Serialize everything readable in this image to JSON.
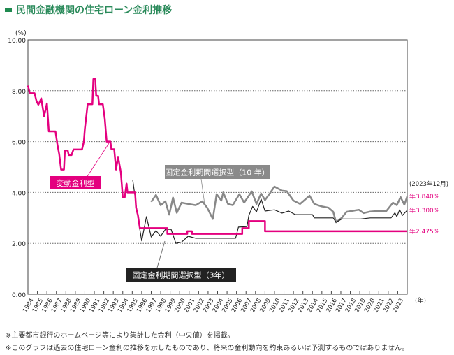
{
  "header": {
    "title": "民間金融機関の住宅ローン金利推移"
  },
  "chart_data": {
    "type": "line",
    "title": "民間金融機関の住宅ローン金利推移",
    "ylabel": "(%)",
    "xlabel": "(年)",
    "ylim": [
      0,
      10
    ],
    "xlim": [
      1984,
      2024
    ],
    "yticks": [
      "0.00",
      "2.00",
      "4.00",
      "6.00",
      "8.00",
      "10.00"
    ],
    "xticks": [
      "1984",
      "1985",
      "1986",
      "1987",
      "1988",
      "1989",
      "1990",
      "1991",
      "1992",
      "1993",
      "1994",
      "1995",
      "1996",
      "1997",
      "1998",
      "1999",
      "2000",
      "2001",
      "2002",
      "2003",
      "2004",
      "2005",
      "2006",
      "2007",
      "2008",
      "2009",
      "2010",
      "2011",
      "2012",
      "2013",
      "2014",
      "2015",
      "2016",
      "2017",
      "2018",
      "2019",
      "2020",
      "2021",
      "2022",
      "2023"
    ],
    "grid": "horizontal dotted",
    "end_date_label": "(2023年12月)",
    "series": [
      {
        "name": "変動金利型",
        "color": "#e4007f",
        "end_label": "年2.475%",
        "points": [
          [
            1984.0,
            8.2
          ],
          [
            1984.2,
            7.9
          ],
          [
            1984.7,
            7.9
          ],
          [
            1984.9,
            7.6
          ],
          [
            1985.1,
            7.45
          ],
          [
            1985.3,
            7.6
          ],
          [
            1985.4,
            7.7
          ],
          [
            1985.7,
            7.0
          ],
          [
            1986.0,
            7.5
          ],
          [
            1986.2,
            6.4
          ],
          [
            1986.9,
            6.4
          ],
          [
            1987.1,
            5.9
          ],
          [
            1987.3,
            5.5
          ],
          [
            1987.5,
            4.9
          ],
          [
            1987.8,
            4.9
          ],
          [
            1987.9,
            5.65
          ],
          [
            1988.2,
            5.65
          ],
          [
            1988.3,
            5.47
          ],
          [
            1988.6,
            5.47
          ],
          [
            1988.8,
            5.69
          ],
          [
            1989.7,
            5.69
          ],
          [
            1989.9,
            6.0
          ],
          [
            1990.0,
            6.5
          ],
          [
            1990.3,
            7.47
          ],
          [
            1990.8,
            7.47
          ],
          [
            1990.9,
            8.46
          ],
          [
            1991.1,
            8.46
          ],
          [
            1991.2,
            7.8
          ],
          [
            1991.4,
            7.8
          ],
          [
            1991.5,
            7.47
          ],
          [
            1991.9,
            7.47
          ],
          [
            1992.1,
            6.9
          ],
          [
            1992.3,
            6.0
          ],
          [
            1992.7,
            6.0
          ],
          [
            1992.8,
            5.7
          ],
          [
            1993.1,
            5.7
          ],
          [
            1993.3,
            4.9
          ],
          [
            1993.5,
            5.4
          ],
          [
            1993.8,
            4.8
          ],
          [
            1994.0,
            3.8
          ],
          [
            1994.2,
            3.8
          ],
          [
            1994.4,
            4.35
          ],
          [
            1994.5,
            4.0
          ],
          [
            1995.3,
            4.0
          ],
          [
            1995.4,
            3.4
          ],
          [
            1995.6,
            3.1
          ],
          [
            1995.8,
            2.6
          ],
          [
            1998.7,
            2.6
          ],
          [
            1998.7,
            2.375
          ],
          [
            2000.8,
            2.375
          ],
          [
            2000.8,
            2.475
          ],
          [
            2001.3,
            2.475
          ],
          [
            2001.3,
            2.375
          ],
          [
            2006.6,
            2.375
          ],
          [
            2006.6,
            2.6
          ],
          [
            2007.3,
            2.6
          ],
          [
            2007.3,
            2.875
          ],
          [
            2009.0,
            2.875
          ],
          [
            2009.0,
            2.475
          ],
          [
            2024.0,
            2.475
          ]
        ]
      },
      {
        "name": "固定金利期間選択型（10 年）",
        "color": "#888888",
        "end_label": "年3.840%",
        "points": [
          [
            1997.0,
            3.63
          ],
          [
            1997.5,
            3.9
          ],
          [
            1998.0,
            3.5
          ],
          [
            1998.5,
            3.65
          ],
          [
            1998.9,
            3.13
          ],
          [
            1999.3,
            3.8
          ],
          [
            1999.7,
            3.2
          ],
          [
            2000.2,
            3.6
          ],
          [
            2000.9,
            3.55
          ],
          [
            2001.7,
            3.5
          ],
          [
            2002.4,
            3.65
          ],
          [
            2002.9,
            3.4
          ],
          [
            2003.5,
            2.96
          ],
          [
            2003.9,
            3.93
          ],
          [
            2004.4,
            3.68
          ],
          [
            2004.6,
            4.0
          ],
          [
            2005.1,
            3.55
          ],
          [
            2005.6,
            3.5
          ],
          [
            2006.3,
            3.93
          ],
          [
            2006.8,
            3.6
          ],
          [
            2007.6,
            4.04
          ],
          [
            2008.1,
            3.55
          ],
          [
            2008.6,
            3.96
          ],
          [
            2009.0,
            3.7
          ],
          [
            2009.5,
            3.96
          ],
          [
            2010.0,
            4.23
          ],
          [
            2010.8,
            4.07
          ],
          [
            2011.3,
            4.05
          ],
          [
            2012.0,
            3.68
          ],
          [
            2012.7,
            3.55
          ],
          [
            2013.7,
            3.87
          ],
          [
            2014.2,
            3.55
          ],
          [
            2014.9,
            3.46
          ],
          [
            2015.7,
            3.4
          ],
          [
            2016.2,
            3.24
          ],
          [
            2016.5,
            2.83
          ],
          [
            2017.1,
            3.0
          ],
          [
            2017.6,
            3.24
          ],
          [
            2018.9,
            3.32
          ],
          [
            2019.4,
            3.19
          ],
          [
            2020.1,
            3.25
          ],
          [
            2020.8,
            3.27
          ],
          [
            2021.8,
            3.27
          ],
          [
            2022.5,
            3.6
          ],
          [
            2022.9,
            3.5
          ],
          [
            2023.3,
            3.82
          ],
          [
            2023.7,
            3.52
          ],
          [
            2024.0,
            3.84
          ]
        ]
      },
      {
        "name": "固定金利期間選択型（3年）",
        "color": "#222222",
        "end_label": "年3.300%",
        "points": [
          [
            1995.05,
            4.5
          ],
          [
            1995.6,
            3.0
          ],
          [
            1996.0,
            2.1
          ],
          [
            1996.5,
            3.05
          ],
          [
            1997.0,
            2.25
          ],
          [
            1997.5,
            2.5
          ],
          [
            1998.0,
            2.28
          ],
          [
            1998.5,
            2.55
          ],
          [
            1999.1,
            2.55
          ],
          [
            1999.6,
            2.0
          ],
          [
            2000.2,
            2.05
          ],
          [
            2000.9,
            2.28
          ],
          [
            2001.7,
            2.2
          ],
          [
            2005.9,
            2.2
          ],
          [
            2006.2,
            2.64
          ],
          [
            2007.1,
            2.66
          ],
          [
            2007.3,
            3.1
          ],
          [
            2007.7,
            3.45
          ],
          [
            2008.1,
            3.24
          ],
          [
            2008.6,
            3.74
          ],
          [
            2009.0,
            3.27
          ],
          [
            2010.0,
            3.32
          ],
          [
            2010.8,
            3.19
          ],
          [
            2011.5,
            3.27
          ],
          [
            2012.2,
            3.13
          ],
          [
            2014.0,
            3.13
          ],
          [
            2014.2,
            3.0
          ],
          [
            2016.2,
            3.0
          ],
          [
            2016.5,
            2.83
          ],
          [
            2017.1,
            2.96
          ],
          [
            2019.1,
            2.96
          ],
          [
            2020.1,
            3.0
          ],
          [
            2022.3,
            3.0
          ],
          [
            2022.7,
            3.2
          ],
          [
            2022.9,
            3.05
          ],
          [
            2023.2,
            3.32
          ],
          [
            2023.5,
            3.1
          ],
          [
            2024.0,
            3.3
          ]
        ]
      }
    ]
  },
  "footnotes": [
    "※主要都市銀行のホームページ等により集計した金利（中央値）を掲載。",
    "※このグラフは過去の住宅ローン金利の推移を示したものであり、将来の金利動向を約束あるいは予測するものではありません。"
  ]
}
